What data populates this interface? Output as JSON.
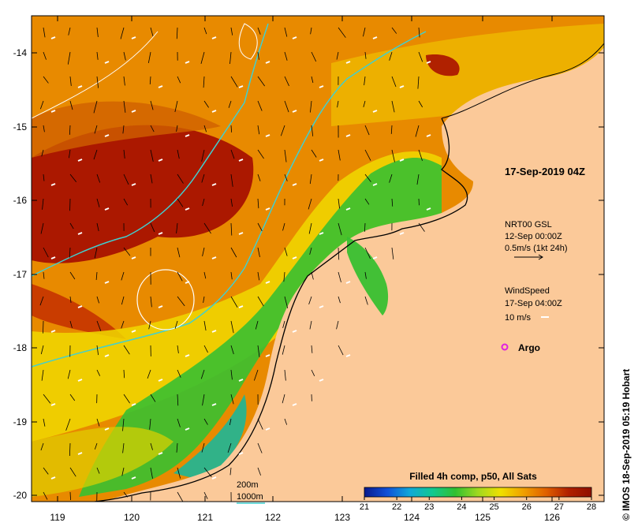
{
  "map": {
    "title": "17-Sep-2019 04Z",
    "lat_ticks": [
      "-14",
      "-15",
      "-16",
      "-17",
      "-18",
      "-19",
      "-20"
    ],
    "lon_ticks": [
      "119",
      "120",
      "121",
      "122",
      "123",
      "124",
      "125",
      "126"
    ],
    "land_color": "#fbc999",
    "ocean_colors": {
      "warm": "#a01000",
      "orange": "#e07a00",
      "yellow": "#f0dc00",
      "green": "#30c020",
      "cyan": "#00b8a0"
    },
    "legend": {
      "current": {
        "line1": "NRT00 GSL",
        "line2": "12-Sep 00:00Z",
        "line3": "0.5m/s (1kt 24h)"
      },
      "wind": {
        "line1": "WindSpeed",
        "line2": "17-Sep 04:00Z",
        "line3": "10 m/s"
      },
      "argo": {
        "label": "Argo",
        "color": "#e020e0"
      },
      "isobaths": {
        "shallow": "200m",
        "deep": "1000m",
        "deep_color": "#40d0d0"
      }
    },
    "colorbar": {
      "title": "Filled 4h comp, p50, All Sats",
      "ticks": [
        "21",
        "22",
        "23",
        "24",
        "25",
        "26",
        "27",
        "28"
      ],
      "colors": [
        "#0a1a8c",
        "#1050d8",
        "#10a8d8",
        "#10c890",
        "#30c030",
        "#a0d820",
        "#f0e000",
        "#f0a000",
        "#e06000",
        "#b02000",
        "#901000"
      ]
    },
    "credit": "© IMOS 18-Sep-2019 05:19 Hobart"
  }
}
